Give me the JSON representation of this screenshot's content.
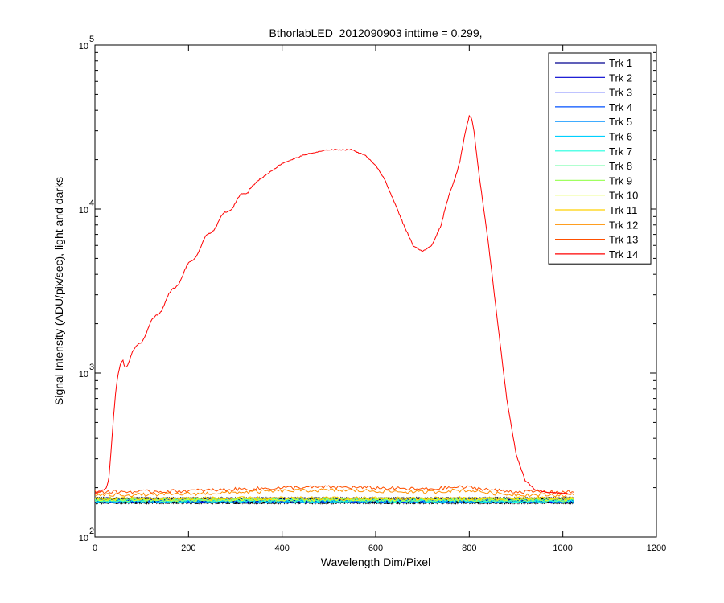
{
  "chart_data": {
    "type": "line",
    "title": "BthorlabLED_2012090903 inttime = 0.299,",
    "xlabel": "Wavelength Dim/Pixel",
    "ylabel": "Signal Intensity (ADU/pix/sec), light and darks",
    "xlim": [
      0,
      1200
    ],
    "ylim": [
      100,
      100000
    ],
    "yscale": "log",
    "x_ticks": [
      0,
      200,
      400,
      600,
      800,
      1000,
      1200
    ],
    "x_tick_labels": [
      "0",
      "200",
      "400",
      "600",
      "800",
      "1000",
      "1200"
    ],
    "y_ticks": [
      {
        "value": 100,
        "base": "10",
        "exp": "2"
      },
      {
        "value": 1000,
        "base": "10",
        "exp": "3"
      },
      {
        "value": 10000,
        "base": "10",
        "exp": "4"
      },
      {
        "value": 100000,
        "base": "10",
        "exp": "5"
      }
    ],
    "legend_position": "top-right",
    "series": [
      {
        "name": "Trk 1",
        "color": "#00008f",
        "level": 170
      },
      {
        "name": "Trk 2",
        "color": "#0000cf",
        "level": 168
      },
      {
        "name": "Trk 3",
        "color": "#0010ff",
        "level": 166
      },
      {
        "name": "Trk 4",
        "color": "#0050ff",
        "level": 165
      },
      {
        "name": "Trk 5",
        "color": "#0090ff",
        "level": 165
      },
      {
        "name": "Trk 6",
        "color": "#00d0ff",
        "level": 166
      },
      {
        "name": "Trk 7",
        "color": "#20ffdf",
        "level": 167
      },
      {
        "name": "Trk 8",
        "color": "#60ff9f",
        "level": 168
      },
      {
        "name": "Trk 9",
        "color": "#a0ff60",
        "level": 169
      },
      {
        "name": "Trk 10",
        "color": "#dfff20",
        "level": 170
      },
      {
        "name": "Trk 11",
        "color": "#ffd000",
        "level": 172
      },
      {
        "name": "Trk 12",
        "color": "#ff9000",
        "level": 180
      },
      {
        "name": "Trk 13",
        "color": "#ff5000",
        "level": 188
      },
      {
        "name": "Trk 14",
        "color": "#ff0000",
        "x": [
          0,
          10,
          20,
          25,
          30,
          35,
          40,
          45,
          50,
          55,
          60,
          65,
          70,
          80,
          100,
          120,
          150,
          200,
          250,
          300,
          350,
          400,
          450,
          500,
          550,
          580,
          600,
          620,
          640,
          660,
          680,
          700,
          720,
          740,
          750,
          760,
          770,
          780,
          790,
          800,
          805,
          810,
          820,
          840,
          860,
          880,
          900,
          920,
          940,
          960,
          1000,
          1020
        ],
        "y": [
          185,
          190,
          195,
          200,
          230,
          350,
          550,
          800,
          1000,
          1150,
          1200,
          1120,
          1150,
          1300,
          1600,
          2000,
          2700,
          4500,
          7500,
          11000,
          15000,
          19000,
          21500,
          23000,
          23000,
          21000,
          18500,
          15000,
          11000,
          8000,
          6000,
          5500,
          6000,
          8000,
          10500,
          13000,
          15500,
          19500,
          28000,
          37000,
          36000,
          30000,
          17000,
          6500,
          2100,
          700,
          320,
          220,
          195,
          188,
          185,
          183
        ]
      }
    ],
    "darks": {
      "color": "#000000",
      "count": 14,
      "level": 167,
      "x_range": [
        0,
        1024
      ]
    }
  }
}
